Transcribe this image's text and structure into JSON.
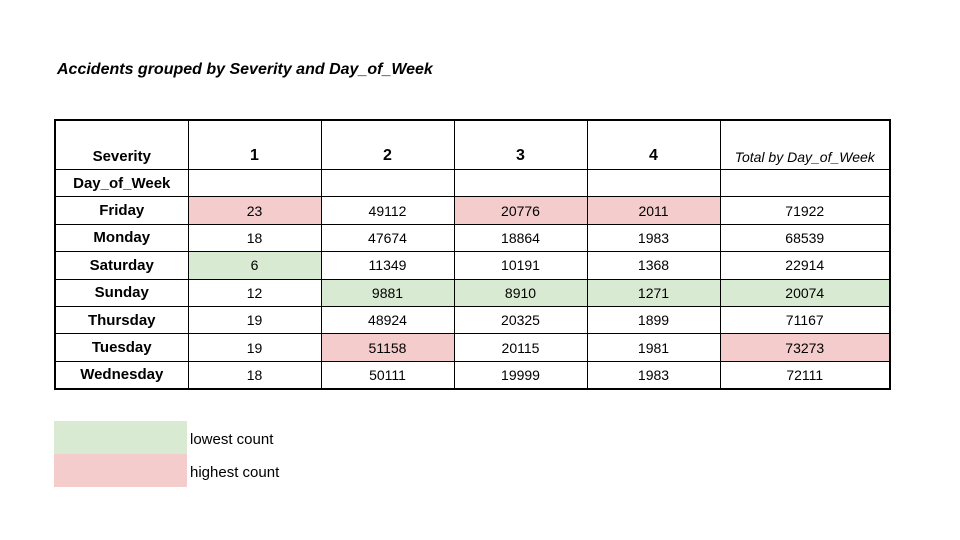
{
  "colors": {
    "lowest": "#d9ead3",
    "highest": "#f4cccc"
  },
  "chart_data": {
    "type": "table",
    "title": "Accidents grouped by Severity and Day_of_Week",
    "corner_label": "Severity",
    "row_axis_label": "Day_of_Week",
    "columns": [
      "1",
      "2",
      "3",
      "4"
    ],
    "total_label": "Total by Day_of_Week",
    "rows": [
      {
        "day": "Friday",
        "values": [
          23,
          49112,
          20776,
          2011
        ],
        "total": 71922,
        "marks": [
          "high",
          "",
          "high",
          "high",
          ""
        ]
      },
      {
        "day": "Monday",
        "values": [
          18,
          47674,
          18864,
          1983
        ],
        "total": 68539,
        "marks": [
          "",
          "",
          "",
          "",
          ""
        ]
      },
      {
        "day": "Saturday",
        "values": [
          6,
          11349,
          10191,
          1368
        ],
        "total": 22914,
        "marks": [
          "low",
          "",
          "",
          "",
          ""
        ]
      },
      {
        "day": "Sunday",
        "values": [
          12,
          9881,
          8910,
          1271
        ],
        "total": 20074,
        "marks": [
          "",
          "low",
          "low",
          "low",
          "low"
        ]
      },
      {
        "day": "Thursday",
        "values": [
          19,
          48924,
          20325,
          1899
        ],
        "total": 71167,
        "marks": [
          "",
          "",
          "",
          "",
          ""
        ]
      },
      {
        "day": "Tuesday",
        "values": [
          19,
          51158,
          20115,
          1981
        ],
        "total": 73273,
        "marks": [
          "",
          "high",
          "",
          "",
          "high"
        ]
      },
      {
        "day": "Wednesday",
        "values": [
          18,
          50111,
          19999,
          1983
        ],
        "total": 72111,
        "marks": [
          "",
          "",
          "",
          "",
          ""
        ]
      }
    ],
    "legend": [
      {
        "key": "low",
        "label": "lowest count"
      },
      {
        "key": "high",
        "label": "highest count"
      }
    ]
  }
}
